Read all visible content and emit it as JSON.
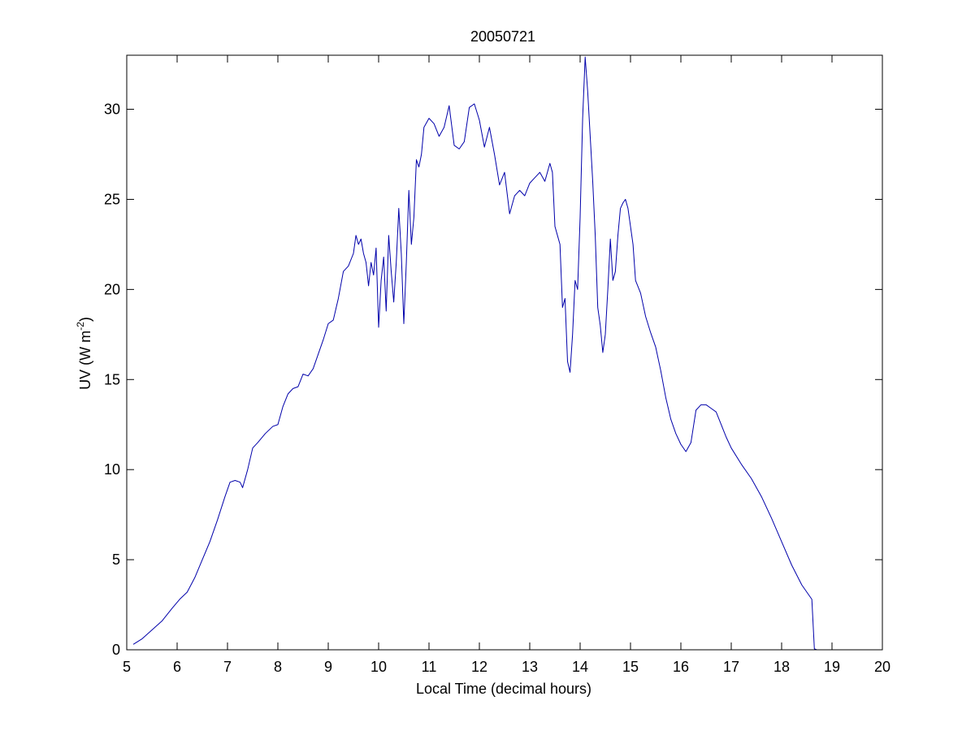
{
  "chart_data": {
    "type": "line",
    "title": "20050721",
    "xlabel": "Local Time (decimal hours)",
    "ylabel": {
      "main": "UV (W m",
      "sup": "-2",
      "close": ")"
    },
    "xlim": [
      5,
      20
    ],
    "ylim": [
      0,
      33
    ],
    "xticks": [
      5,
      6,
      7,
      8,
      9,
      10,
      11,
      12,
      13,
      14,
      15,
      16,
      17,
      18,
      19,
      20
    ],
    "yticks": [
      0,
      5,
      10,
      15,
      20,
      25,
      30
    ],
    "grid": false,
    "line_color": "#0000aa",
    "series": [
      {
        "x": [
          5.13,
          5.3,
          5.5,
          5.7,
          5.9,
          6.05,
          6.2,
          6.35,
          6.5,
          6.65,
          6.8,
          6.95,
          7.05,
          7.15,
          7.25,
          7.3,
          7.4,
          7.5,
          7.6,
          7.75,
          7.9,
          8.0,
          8.1,
          8.2,
          8.3,
          8.4,
          8.5,
          8.6,
          8.7,
          8.8,
          8.9,
          9.0,
          9.1,
          9.2,
          9.3,
          9.4,
          9.5,
          9.55,
          9.6,
          9.65,
          9.7,
          9.75,
          9.8,
          9.85,
          9.9,
          9.95,
          10.0,
          10.05,
          10.1,
          10.15,
          10.2,
          10.25,
          10.3,
          10.35,
          10.4,
          10.45,
          10.5,
          10.55,
          10.6,
          10.65,
          10.7,
          10.75,
          10.8,
          10.85,
          10.9,
          11.0,
          11.1,
          11.2,
          11.3,
          11.4,
          11.5,
          11.6,
          11.7,
          11.8,
          11.9,
          12.0,
          12.1,
          12.2,
          12.3,
          12.4,
          12.5,
          12.6,
          12.7,
          12.8,
          12.9,
          13.0,
          13.1,
          13.2,
          13.3,
          13.4,
          13.45,
          13.5,
          13.55,
          13.6,
          13.65,
          13.7,
          13.75,
          13.8,
          13.85,
          13.9,
          13.95,
          14.0,
          14.05,
          14.1,
          14.15,
          14.2,
          14.25,
          14.3,
          14.35,
          14.4,
          14.45,
          14.5,
          14.55,
          14.6,
          14.65,
          14.7,
          14.75,
          14.8,
          14.85,
          14.9,
          14.95,
          15.0,
          15.05,
          15.1,
          15.2,
          15.3,
          15.4,
          15.5,
          15.6,
          15.7,
          15.8,
          15.9,
          16.0,
          16.1,
          16.2,
          16.3,
          16.4,
          16.5,
          16.6,
          16.7,
          16.8,
          16.9,
          17.0,
          17.2,
          17.4,
          17.6,
          17.8,
          18.0,
          18.2,
          18.4,
          18.6,
          18.65,
          18.7,
          19.0,
          19.3,
          19.5
        ],
        "y": [
          0.3,
          0.6,
          1.1,
          1.6,
          2.3,
          2.8,
          3.2,
          4.0,
          5.0,
          6.0,
          7.2,
          8.5,
          9.3,
          9.4,
          9.3,
          9.0,
          10.0,
          11.2,
          11.5,
          12.0,
          12.4,
          12.5,
          13.5,
          14.2,
          14.5,
          14.6,
          15.3,
          15.2,
          15.6,
          16.4,
          17.2,
          18.1,
          18.3,
          19.5,
          21.0,
          21.3,
          22.0,
          23.0,
          22.5,
          22.8,
          22.0,
          21.5,
          20.2,
          21.5,
          20.8,
          22.3,
          17.9,
          20.5,
          21.8,
          18.8,
          23.0,
          21.0,
          19.3,
          21.5,
          24.5,
          22.0,
          18.1,
          21.5,
          25.5,
          22.5,
          24.0,
          27.2,
          26.8,
          27.5,
          29.0,
          29.5,
          29.2,
          28.5,
          29.0,
          30.2,
          28.0,
          27.8,
          28.2,
          30.1,
          30.3,
          29.4,
          27.9,
          29.0,
          27.5,
          25.8,
          26.5,
          24.2,
          25.2,
          25.5,
          25.2,
          25.9,
          26.2,
          26.5,
          26.0,
          27.0,
          26.5,
          23.5,
          23.0,
          22.5,
          19.0,
          19.5,
          16.0,
          15.4,
          17.5,
          20.5,
          20.0,
          24.0,
          29.5,
          32.9,
          31.0,
          28.5,
          26.0,
          23.0,
          19.0,
          18.0,
          16.5,
          17.5,
          20.0,
          22.8,
          20.5,
          21.0,
          23.0,
          24.5,
          24.8,
          25.0,
          24.5,
          23.5,
          22.5,
          20.5,
          19.8,
          18.5,
          17.6,
          16.8,
          15.5,
          14.0,
          12.8,
          12.0,
          11.4,
          11.0,
          11.5,
          13.3,
          13.6,
          13.6,
          13.4,
          13.2,
          12.5,
          11.8,
          11.2,
          10.3,
          9.5,
          8.5,
          7.3,
          6.0,
          4.7,
          3.6,
          2.8,
          0.05,
          0.0,
          0.0,
          0.0,
          0.0
        ]
      }
    ]
  }
}
